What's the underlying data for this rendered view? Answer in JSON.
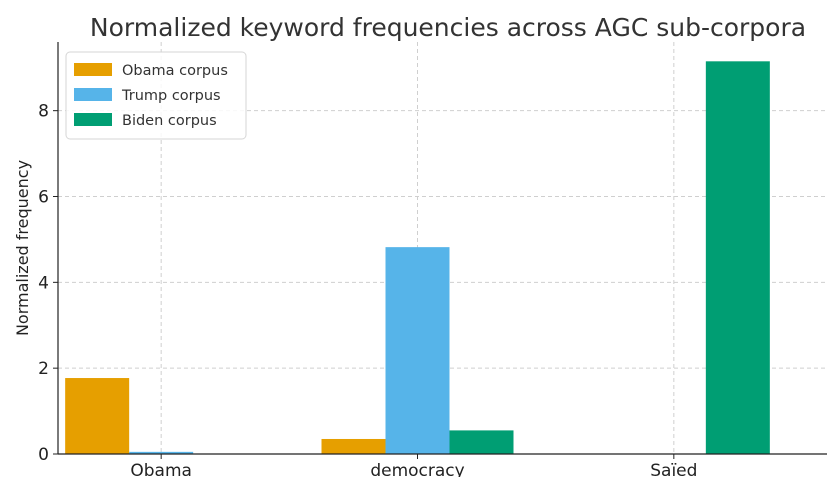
{
  "chart_data": {
    "type": "bar",
    "title": "Normalized keyword frequencies across AGC sub-corpora",
    "xlabel": "",
    "ylabel": "Normalized frequency",
    "categories": [
      "Obama",
      "democracy",
      "Saïed"
    ],
    "series": [
      {
        "name": "Obama corpus",
        "values": [
          1.77,
          0.35,
          0.0
        ],
        "color": "#E69F00"
      },
      {
        "name": "Trump corpus",
        "values": [
          0.05,
          4.82,
          0.0
        ],
        "color": "#56B4E9"
      },
      {
        "name": "Biden corpus",
        "values": [
          0.0,
          0.55,
          9.15
        ],
        "color": "#009E73"
      }
    ],
    "ylim": [
      0,
      9.6
    ],
    "yticks": [
      0,
      2,
      4,
      6,
      8
    ],
    "grid": true,
    "legend_position": "top-left"
  }
}
